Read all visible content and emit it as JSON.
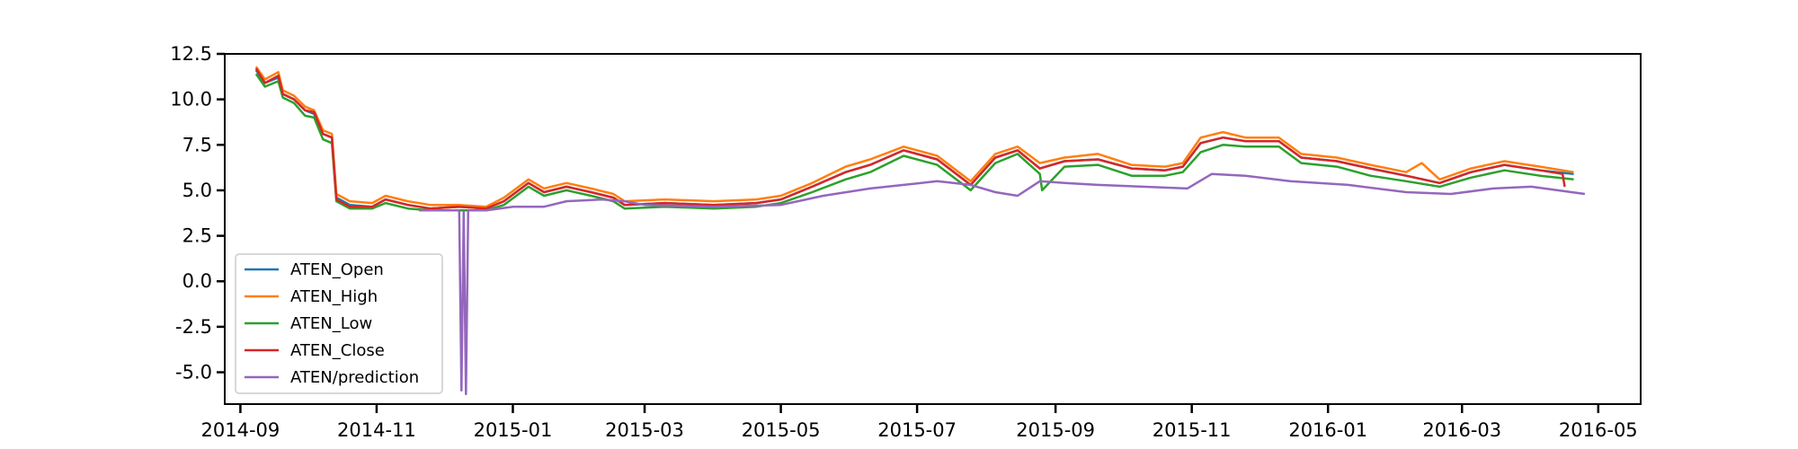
{
  "chart_data": {
    "type": "line",
    "title": "",
    "xlabel": "",
    "ylabel": "",
    "x_domain": [
      "2014-08-25",
      "2016-05-20"
    ],
    "ylim": [
      -6.75,
      12.5
    ],
    "x_ticks": [
      {
        "date": "2014-09-01",
        "label": "2014-09"
      },
      {
        "date": "2014-11-01",
        "label": "2014-11"
      },
      {
        "date": "2015-01-01",
        "label": "2015-01"
      },
      {
        "date": "2015-03-01",
        "label": "2015-03"
      },
      {
        "date": "2015-05-01",
        "label": "2015-05"
      },
      {
        "date": "2015-07-01",
        "label": "2015-07"
      },
      {
        "date": "2015-09-01",
        "label": "2015-09"
      },
      {
        "date": "2015-11-01",
        "label": "2015-11"
      },
      {
        "date": "2016-01-01",
        "label": "2016-01"
      },
      {
        "date": "2016-03-01",
        "label": "2016-03"
      },
      {
        "date": "2016-05-01",
        "label": "2016-05"
      }
    ],
    "y_ticks": [
      {
        "value": 12.5,
        "label": "12.5"
      },
      {
        "value": 10.0,
        "label": "10.0"
      },
      {
        "value": 7.5,
        "label": "7.5"
      },
      {
        "value": 5.0,
        "label": "5.0"
      },
      {
        "value": 2.5,
        "label": "2.5"
      },
      {
        "value": 0.0,
        "label": "0.0"
      },
      {
        "value": -2.5,
        "label": "-2.5"
      },
      {
        "value": -5.0,
        "label": "-5.0"
      }
    ],
    "grid": false,
    "legend_position": "lower-left",
    "series": [
      {
        "name": "ATEN_Open",
        "color": "#1f77b4",
        "points": [
          [
            "2014-09-08",
            11.6
          ],
          [
            "2014-09-12",
            10.9
          ],
          [
            "2014-09-18",
            11.2
          ],
          [
            "2014-09-20",
            10.3
          ],
          [
            "2014-09-25",
            10.0
          ],
          [
            "2014-09-30",
            9.4
          ],
          [
            "2014-10-04",
            9.2
          ],
          [
            "2014-10-08",
            8.1
          ],
          [
            "2014-10-12",
            7.9
          ],
          [
            "2014-10-14",
            4.6
          ],
          [
            "2014-10-20",
            4.2
          ],
          [
            "2014-10-30",
            4.1
          ],
          [
            "2014-11-05",
            4.5
          ],
          [
            "2014-11-15",
            4.2
          ],
          [
            "2014-11-25",
            4.0
          ],
          [
            "2014-12-08",
            4.1
          ],
          [
            "2014-12-20",
            4.0
          ],
          [
            "2014-12-28",
            4.4
          ],
          [
            "2015-01-08",
            5.4
          ],
          [
            "2015-01-15",
            4.9
          ],
          [
            "2015-01-25",
            5.2
          ],
          [
            "2015-02-05",
            4.9
          ],
          [
            "2015-02-15",
            4.6
          ],
          [
            "2015-02-20",
            4.2
          ],
          [
            "2015-03-10",
            4.3
          ],
          [
            "2015-04-01",
            4.2
          ],
          [
            "2015-04-20",
            4.3
          ],
          [
            "2015-05-01",
            4.5
          ],
          [
            "2015-05-15",
            5.2
          ],
          [
            "2015-05-30",
            6.0
          ],
          [
            "2015-06-10",
            6.4
          ],
          [
            "2015-06-25",
            7.2
          ],
          [
            "2015-07-10",
            6.7
          ],
          [
            "2015-07-25",
            5.3
          ],
          [
            "2015-08-05",
            6.8
          ],
          [
            "2015-08-15",
            7.2
          ],
          [
            "2015-08-25",
            6.2
          ],
          [
            "2015-09-05",
            6.6
          ],
          [
            "2015-09-20",
            6.7
          ],
          [
            "2015-10-05",
            6.2
          ],
          [
            "2015-10-20",
            6.1
          ],
          [
            "2015-10-28",
            6.3
          ],
          [
            "2015-11-05",
            7.6
          ],
          [
            "2015-11-15",
            7.9
          ],
          [
            "2015-11-25",
            7.7
          ],
          [
            "2015-12-10",
            7.7
          ],
          [
            "2015-12-20",
            6.8
          ],
          [
            "2016-01-05",
            6.6
          ],
          [
            "2016-01-20",
            6.2
          ],
          [
            "2016-02-05",
            5.8
          ],
          [
            "2016-02-20",
            5.4
          ],
          [
            "2016-03-05",
            6.0
          ],
          [
            "2016-03-20",
            6.4
          ],
          [
            "2016-04-05",
            6.1
          ],
          [
            "2016-04-20",
            5.9
          ]
        ]
      },
      {
        "name": "ATEN_High",
        "color": "#ff7f0e",
        "points": [
          [
            "2014-09-08",
            11.8
          ],
          [
            "2014-09-12",
            11.1
          ],
          [
            "2014-09-18",
            11.5
          ],
          [
            "2014-09-20",
            10.5
          ],
          [
            "2014-09-25",
            10.2
          ],
          [
            "2014-09-30",
            9.6
          ],
          [
            "2014-10-04",
            9.4
          ],
          [
            "2014-10-08",
            8.3
          ],
          [
            "2014-10-12",
            8.1
          ],
          [
            "2014-10-14",
            4.8
          ],
          [
            "2014-10-20",
            4.4
          ],
          [
            "2014-10-30",
            4.3
          ],
          [
            "2014-11-05",
            4.7
          ],
          [
            "2014-11-15",
            4.4
          ],
          [
            "2014-11-25",
            4.2
          ],
          [
            "2014-12-08",
            4.2
          ],
          [
            "2014-12-20",
            4.1
          ],
          [
            "2014-12-28",
            4.6
          ],
          [
            "2015-01-08",
            5.6
          ],
          [
            "2015-01-15",
            5.1
          ],
          [
            "2015-01-25",
            5.4
          ],
          [
            "2015-02-05",
            5.1
          ],
          [
            "2015-02-15",
            4.8
          ],
          [
            "2015-02-20",
            4.4
          ],
          [
            "2015-03-10",
            4.5
          ],
          [
            "2015-04-01",
            4.4
          ],
          [
            "2015-04-20",
            4.5
          ],
          [
            "2015-05-01",
            4.7
          ],
          [
            "2015-05-15",
            5.4
          ],
          [
            "2015-05-30",
            6.3
          ],
          [
            "2015-06-10",
            6.7
          ],
          [
            "2015-06-25",
            7.4
          ],
          [
            "2015-07-10",
            6.9
          ],
          [
            "2015-07-25",
            5.5
          ],
          [
            "2015-08-05",
            7.0
          ],
          [
            "2015-08-15",
            7.4
          ],
          [
            "2015-08-25",
            6.5
          ],
          [
            "2015-09-05",
            6.8
          ],
          [
            "2015-09-20",
            7.0
          ],
          [
            "2015-10-05",
            6.4
          ],
          [
            "2015-10-20",
            6.3
          ],
          [
            "2015-10-28",
            6.5
          ],
          [
            "2015-11-05",
            7.9
          ],
          [
            "2015-11-15",
            8.2
          ],
          [
            "2015-11-25",
            7.9
          ],
          [
            "2015-12-10",
            7.9
          ],
          [
            "2015-12-20",
            7.0
          ],
          [
            "2016-01-05",
            6.8
          ],
          [
            "2016-01-20",
            6.4
          ],
          [
            "2016-02-05",
            6.0
          ],
          [
            "2016-02-12",
            6.5
          ],
          [
            "2016-02-20",
            5.6
          ],
          [
            "2016-03-05",
            6.2
          ],
          [
            "2016-03-20",
            6.6
          ],
          [
            "2016-04-05",
            6.3
          ],
          [
            "2016-04-20",
            6.0
          ]
        ]
      },
      {
        "name": "ATEN_Low",
        "color": "#2ca02c",
        "points": [
          [
            "2014-09-08",
            11.4
          ],
          [
            "2014-09-12",
            10.7
          ],
          [
            "2014-09-18",
            11.0
          ],
          [
            "2014-09-20",
            10.1
          ],
          [
            "2014-09-25",
            9.8
          ],
          [
            "2014-09-30",
            9.1
          ],
          [
            "2014-10-04",
            9.0
          ],
          [
            "2014-10-08",
            7.8
          ],
          [
            "2014-10-12",
            7.6
          ],
          [
            "2014-10-14",
            4.4
          ],
          [
            "2014-10-20",
            4.0
          ],
          [
            "2014-10-30",
            4.0
          ],
          [
            "2014-11-05",
            4.3
          ],
          [
            "2014-11-15",
            4.0
          ],
          [
            "2014-11-25",
            3.9
          ],
          [
            "2014-12-08",
            3.9
          ],
          [
            "2014-12-20",
            3.9
          ],
          [
            "2014-12-28",
            4.2
          ],
          [
            "2015-01-08",
            5.2
          ],
          [
            "2015-01-15",
            4.7
          ],
          [
            "2015-01-25",
            5.0
          ],
          [
            "2015-02-05",
            4.7
          ],
          [
            "2015-02-15",
            4.4
          ],
          [
            "2015-02-20",
            4.0
          ],
          [
            "2015-03-10",
            4.1
          ],
          [
            "2015-04-01",
            4.0
          ],
          [
            "2015-04-20",
            4.1
          ],
          [
            "2015-05-01",
            4.3
          ],
          [
            "2015-05-15",
            4.9
          ],
          [
            "2015-05-30",
            5.6
          ],
          [
            "2015-06-10",
            6.0
          ],
          [
            "2015-06-25",
            6.9
          ],
          [
            "2015-07-10",
            6.4
          ],
          [
            "2015-07-25",
            5.0
          ],
          [
            "2015-08-05",
            6.5
          ],
          [
            "2015-08-15",
            7.0
          ],
          [
            "2015-08-25",
            5.9
          ],
          [
            "2015-08-26",
            5.0
          ],
          [
            "2015-09-05",
            6.3
          ],
          [
            "2015-09-20",
            6.4
          ],
          [
            "2015-10-05",
            5.8
          ],
          [
            "2015-10-20",
            5.8
          ],
          [
            "2015-10-28",
            6.0
          ],
          [
            "2015-11-05",
            7.1
          ],
          [
            "2015-11-15",
            7.5
          ],
          [
            "2015-11-25",
            7.4
          ],
          [
            "2015-12-10",
            7.4
          ],
          [
            "2015-12-20",
            6.5
          ],
          [
            "2016-01-05",
            6.3
          ],
          [
            "2016-01-20",
            5.8
          ],
          [
            "2016-02-05",
            5.5
          ],
          [
            "2016-02-20",
            5.2
          ],
          [
            "2016-03-05",
            5.7
          ],
          [
            "2016-03-20",
            6.1
          ],
          [
            "2016-04-05",
            5.8
          ],
          [
            "2016-04-20",
            5.6
          ]
        ]
      },
      {
        "name": "ATEN_Close",
        "color": "#d62728",
        "points": [
          [
            "2014-09-08",
            11.7
          ],
          [
            "2014-09-12",
            10.9
          ],
          [
            "2014-09-18",
            11.3
          ],
          [
            "2014-09-20",
            10.3
          ],
          [
            "2014-09-25",
            10.0
          ],
          [
            "2014-09-30",
            9.4
          ],
          [
            "2014-10-04",
            9.3
          ],
          [
            "2014-10-08",
            8.1
          ],
          [
            "2014-10-12",
            7.9
          ],
          [
            "2014-10-14",
            4.5
          ],
          [
            "2014-10-20",
            4.1
          ],
          [
            "2014-10-30",
            4.1
          ],
          [
            "2014-11-05",
            4.5
          ],
          [
            "2014-11-15",
            4.2
          ],
          [
            "2014-11-25",
            4.0
          ],
          [
            "2014-12-08",
            4.1
          ],
          [
            "2014-12-20",
            4.0
          ],
          [
            "2014-12-28",
            4.4
          ],
          [
            "2015-01-08",
            5.4
          ],
          [
            "2015-01-15",
            4.9
          ],
          [
            "2015-01-25",
            5.2
          ],
          [
            "2015-02-05",
            4.9
          ],
          [
            "2015-02-15",
            4.6
          ],
          [
            "2015-02-20",
            4.2
          ],
          [
            "2015-03-10",
            4.3
          ],
          [
            "2015-04-01",
            4.2
          ],
          [
            "2015-04-20",
            4.3
          ],
          [
            "2015-05-01",
            4.5
          ],
          [
            "2015-05-15",
            5.2
          ],
          [
            "2015-05-30",
            6.0
          ],
          [
            "2015-06-10",
            6.4
          ],
          [
            "2015-06-25",
            7.2
          ],
          [
            "2015-07-10",
            6.7
          ],
          [
            "2015-07-25",
            5.3
          ],
          [
            "2015-08-05",
            6.8
          ],
          [
            "2015-08-15",
            7.2
          ],
          [
            "2015-08-25",
            6.2
          ],
          [
            "2015-09-05",
            6.6
          ],
          [
            "2015-09-20",
            6.7
          ],
          [
            "2015-10-05",
            6.2
          ],
          [
            "2015-10-20",
            6.1
          ],
          [
            "2015-10-28",
            6.3
          ],
          [
            "2015-11-05",
            7.6
          ],
          [
            "2015-11-15",
            7.9
          ],
          [
            "2015-11-25",
            7.7
          ],
          [
            "2015-12-10",
            7.7
          ],
          [
            "2015-12-20",
            6.8
          ],
          [
            "2016-01-05",
            6.6
          ],
          [
            "2016-01-20",
            6.2
          ],
          [
            "2016-02-05",
            5.8
          ],
          [
            "2016-02-20",
            5.4
          ],
          [
            "2016-03-05",
            6.0
          ],
          [
            "2016-03-20",
            6.4
          ],
          [
            "2016-04-05",
            6.1
          ],
          [
            "2016-04-15",
            5.9
          ],
          [
            "2016-04-16",
            5.2
          ]
        ]
      },
      {
        "name": "ATEN/prediction",
        "color": "#9467bd",
        "points": [
          [
            "2014-11-20",
            3.9
          ],
          [
            "2014-12-01",
            3.9
          ],
          [
            "2014-12-08",
            3.9
          ],
          [
            "2014-12-09",
            -6.0
          ],
          [
            "2014-12-10",
            3.8
          ],
          [
            "2014-12-11",
            -6.2
          ],
          [
            "2014-12-12",
            3.9
          ],
          [
            "2014-12-20",
            3.9
          ],
          [
            "2015-01-01",
            4.1
          ],
          [
            "2015-01-15",
            4.1
          ],
          [
            "2015-01-25",
            4.4
          ],
          [
            "2015-02-10",
            4.5
          ],
          [
            "2015-02-20",
            4.4
          ],
          [
            "2015-03-01",
            4.2
          ],
          [
            "2015-04-01",
            4.1
          ],
          [
            "2015-05-01",
            4.2
          ],
          [
            "2015-05-20",
            4.7
          ],
          [
            "2015-06-10",
            5.1
          ],
          [
            "2015-06-25",
            5.3
          ],
          [
            "2015-07-10",
            5.5
          ],
          [
            "2015-07-25",
            5.3
          ],
          [
            "2015-08-05",
            4.9
          ],
          [
            "2015-08-15",
            4.7
          ],
          [
            "2015-08-25",
            5.5
          ],
          [
            "2015-09-05",
            5.4
          ],
          [
            "2015-09-20",
            5.3
          ],
          [
            "2015-10-10",
            5.2
          ],
          [
            "2015-10-30",
            5.1
          ],
          [
            "2015-11-10",
            5.9
          ],
          [
            "2015-11-25",
            5.8
          ],
          [
            "2015-12-15",
            5.5
          ],
          [
            "2016-01-10",
            5.3
          ],
          [
            "2016-02-05",
            4.9
          ],
          [
            "2016-02-25",
            4.8
          ],
          [
            "2016-03-15",
            5.1
          ],
          [
            "2016-04-01",
            5.2
          ],
          [
            "2016-04-25",
            4.8
          ]
        ]
      }
    ]
  }
}
